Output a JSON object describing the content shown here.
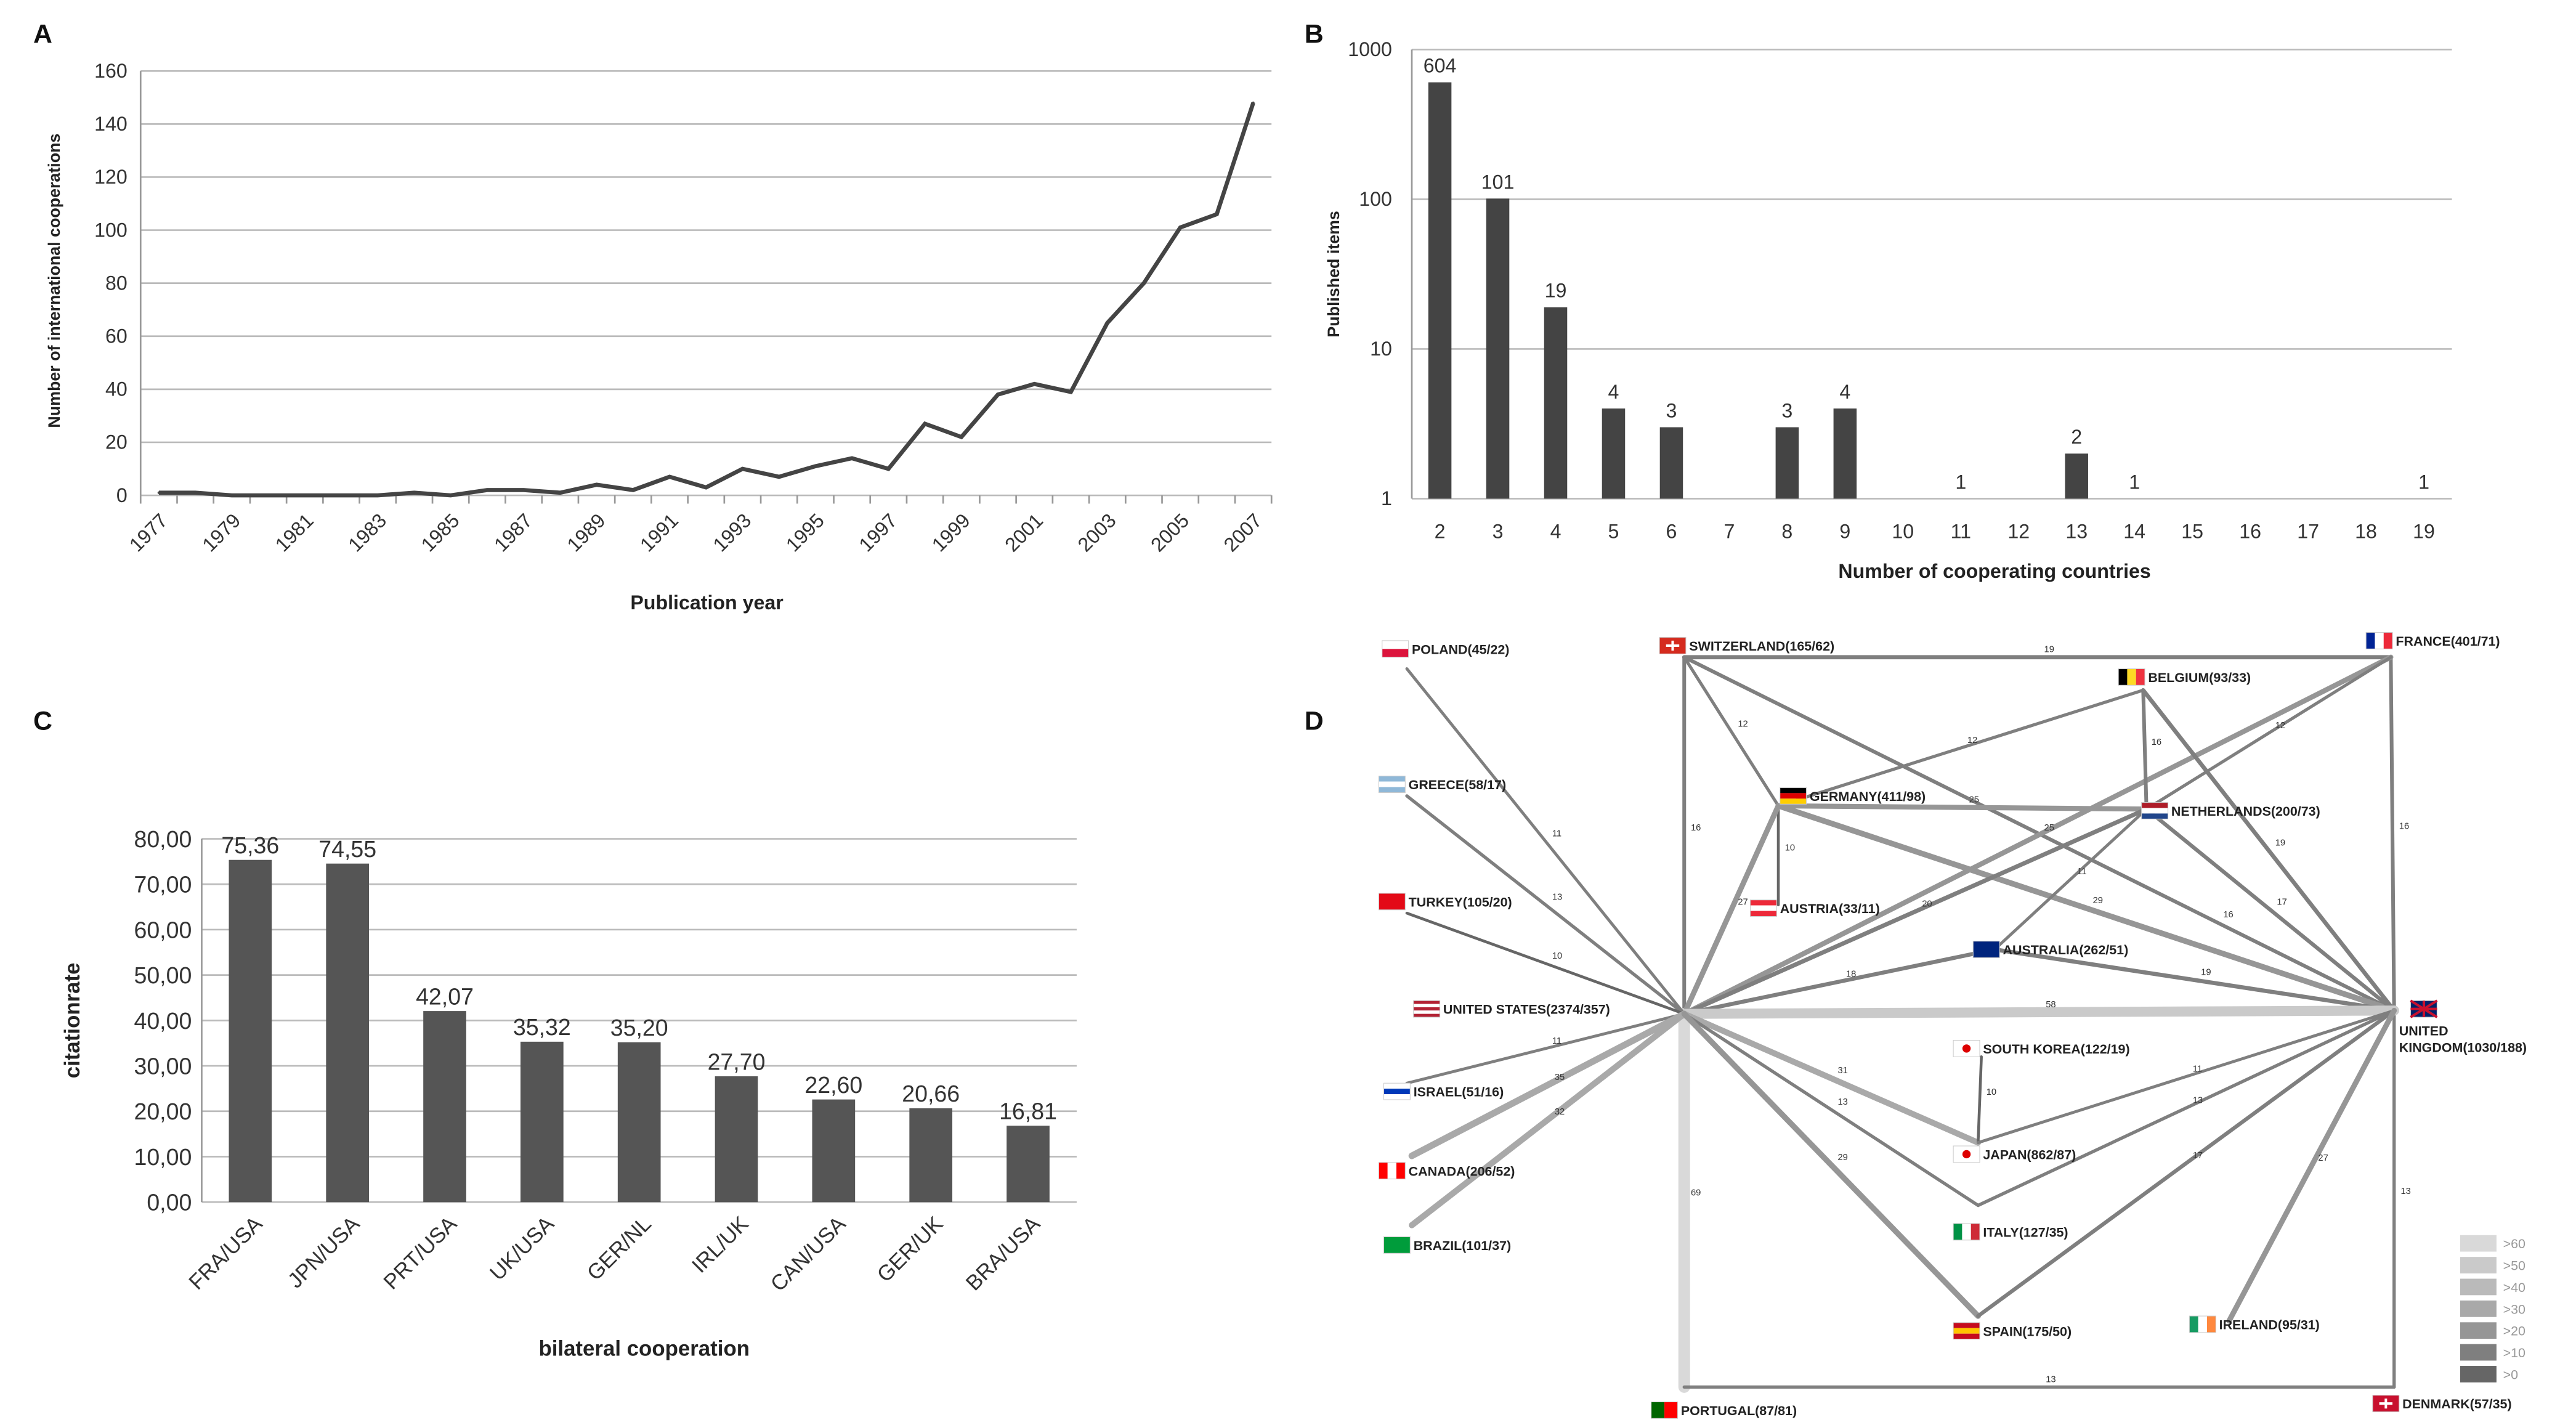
{
  "chart_data": [
    {
      "panel": "A",
      "type": "line",
      "xlabel": "Publication year",
      "ylabel": "Number of international cooperations",
      "ylim": [
        0,
        160
      ],
      "yticks": [
        0,
        20,
        40,
        60,
        80,
        100,
        120,
        140,
        160
      ],
      "xticks": [
        "1977",
        "1979",
        "1981",
        "1983",
        "1985",
        "1987",
        "1989",
        "1991",
        "1993",
        "1995",
        "1997",
        "1999",
        "2001",
        "2003",
        "2005",
        "2007"
      ],
      "x": [
        1977,
        1978,
        1979,
        1980,
        1981,
        1982,
        1983,
        1984,
        1985,
        1986,
        1987,
        1988,
        1989,
        1990,
        1991,
        1992,
        1993,
        1994,
        1995,
        1996,
        1997,
        1998,
        1999,
        2000,
        2001,
        2002,
        2003,
        2004,
        2005,
        2006,
        2007
      ],
      "values": [
        1,
        1,
        0,
        0,
        0,
        0,
        0,
        1,
        0,
        2,
        2,
        1,
        4,
        2,
        7,
        3,
        10,
        7,
        11,
        14,
        10,
        27,
        22,
        38,
        42,
        39,
        65,
        80,
        101,
        106,
        148
      ],
      "grid": true,
      "color": "#444444"
    },
    {
      "panel": "B",
      "type": "bar",
      "scale": "log",
      "xlabel": "Number of cooperating countries",
      "ylabel": "Published items",
      "ylim": [
        1,
        1000
      ],
      "yticks": [
        "1",
        "10",
        "100",
        "1000"
      ],
      "categories": [
        "2",
        "3",
        "4",
        "5",
        "6",
        "7",
        "8",
        "9",
        "10",
        "11",
        "12",
        "13",
        "14",
        "15",
        "16",
        "17",
        "18",
        "19"
      ],
      "values": [
        604,
        101,
        19,
        4,
        3,
        null,
        3,
        4,
        null,
        1,
        null,
        2,
        1,
        null,
        null,
        null,
        null,
        1
      ],
      "grid": true,
      "color": "#444444"
    },
    {
      "panel": "C",
      "type": "bar",
      "xlabel": "bilateral cooperation",
      "ylabel": "citationrate",
      "ylim": [
        0,
        80
      ],
      "yticks": [
        "0,00",
        "10,00",
        "20,00",
        "30,00",
        "40,00",
        "50,00",
        "60,00",
        "70,00",
        "80,00"
      ],
      "categories": [
        "FRA/USA",
        "JPN/USA",
        "PRT/USA",
        "UK/USA",
        "GER/NL",
        "IRL/UK",
        "CAN/USA",
        "GER/UK",
        "BRA/USA"
      ],
      "values": [
        75.36,
        74.55,
        42.07,
        35.32,
        35.2,
        27.7,
        22.6,
        20.66,
        16.81
      ],
      "value_labels": [
        "75,36",
        "74,55",
        "42,07",
        "35,32",
        "35,20",
        "27,70",
        "22,60",
        "20,66",
        "16,81"
      ],
      "grid": true,
      "color": "#555555"
    },
    {
      "panel": "D",
      "type": "network",
      "nodes": [
        {
          "id": "poland",
          "label": "POLAND(45/22)",
          "flag": [
            "#ffffff",
            "#dc143c"
          ],
          "dir": "h"
        },
        {
          "id": "switzerland",
          "label": "SWITZERLAND(165/62)",
          "flag": [
            "#d52b1e"
          ],
          "dir": "h"
        },
        {
          "id": "france",
          "label": "FRANCE(401/71)",
          "flag": [
            "#002395",
            "#ffffff",
            "#ed2939"
          ],
          "dir": "v"
        },
        {
          "id": "belgium",
          "label": "BELGIUM(93/33)",
          "flag": [
            "#000000",
            "#fdda24",
            "#ef3340"
          ],
          "dir": "v"
        },
        {
          "id": "greece",
          "label": "GREECE(58/17)",
          "flag": [
            "#8fb8d8",
            "#ffffff",
            "#8fb8d8"
          ],
          "dir": "h"
        },
        {
          "id": "germany",
          "label": "GERMANY(411/98)",
          "flag": [
            "#000000",
            "#dd0000",
            "#ffce00"
          ],
          "dir": "h"
        },
        {
          "id": "netherlands",
          "label": "NETHERLANDS(200/73)",
          "flag": [
            "#ae1c28",
            "#ffffff",
            "#21468b"
          ],
          "dir": "h"
        },
        {
          "id": "turkey",
          "label": "TURKEY(105/20)",
          "flag": [
            "#e30a17"
          ],
          "dir": "h"
        },
        {
          "id": "austria",
          "label": "AUSTRIA(33/11)",
          "flag": [
            "#ed2939",
            "#ffffff",
            "#ed2939"
          ],
          "dir": "h"
        },
        {
          "id": "australia",
          "label": "AUSTRALIA(262/51)",
          "flag": [
            "#00247d"
          ],
          "dir": "h"
        },
        {
          "id": "usa",
          "label": "UNITED STATES(2374/357)",
          "flag": [
            "#b22234",
            "#ffffff",
            "#b22234",
            "#ffffff",
            "#b22234"
          ],
          "dir": "h"
        },
        {
          "id": "uk",
          "label": "UNITED",
          "label2": "KINGDOM(1030/188)",
          "flag": [
            "#012169"
          ],
          "dir": "h"
        },
        {
          "id": "southkorea",
          "label": "SOUTH KOREA(122/19)",
          "flag": [
            "#ffffff"
          ],
          "dir": "h"
        },
        {
          "id": "israel",
          "label": "ISRAEL(51/16)",
          "flag": [
            "#ffffff",
            "#0038b8",
            "#ffffff"
          ],
          "dir": "h"
        },
        {
          "id": "japan",
          "label": "JAPAN(862/87)",
          "flag": [
            "#ffffff"
          ],
          "dir": "h"
        },
        {
          "id": "canada",
          "label": "CANADA(206/52)",
          "flag": [
            "#ff0000",
            "#ffffff",
            "#ff0000"
          ],
          "dir": "v"
        },
        {
          "id": "italy",
          "label": "ITALY(127/35)",
          "flag": [
            "#009246",
            "#ffffff",
            "#ce2b37"
          ],
          "dir": "v"
        },
        {
          "id": "brazil",
          "label": "BRAZIL(101/37)",
          "flag": [
            "#009c3b"
          ],
          "dir": "h"
        },
        {
          "id": "ireland",
          "label": "IRELAND(95/31)",
          "flag": [
            "#169b62",
            "#ffffff",
            "#ff883e"
          ],
          "dir": "v"
        },
        {
          "id": "spain",
          "label": "SPAIN(175/50)",
          "flag": [
            "#c60b1e",
            "#ffc400",
            "#c60b1e"
          ],
          "dir": "h"
        },
        {
          "id": "portugal",
          "label": "PORTUGAL(87/81)",
          "flag": [
            "#006600",
            "#ff0000"
          ],
          "dir": "v"
        },
        {
          "id": "denmark",
          "label": "DENMARK(57/35)",
          "flag": [
            "#c8102e"
          ],
          "dir": "h"
        }
      ],
      "edges": [
        [
          "switzerland",
          "france",
          19
        ],
        [
          "switzerland",
          "usa",
          16
        ],
        [
          "usa",
          "portugal",
          69
        ],
        [
          "france",
          "uk",
          16
        ],
        [
          "uk",
          "denmark",
          13
        ],
        [
          "portugal",
          "denmark",
          13
        ],
        [
          "switzerland",
          "germany",
          12
        ],
        [
          "switzerland",
          "uk",
          16
        ],
        [
          "germany",
          "belgium",
          12
        ],
        [
          "usa",
          "france",
          25
        ],
        [
          "netherlands",
          "france",
          12
        ],
        [
          "belgium",
          "netherlands",
          16
        ],
        [
          "belgium",
          "uk",
          19
        ],
        [
          "germany",
          "netherlands",
          25
        ],
        [
          "germany",
          "austria",
          10
        ],
        [
          "germany",
          "usa",
          27
        ],
        [
          "germany",
          "uk",
          29
        ],
        [
          "netherlands",
          "uk",
          17
        ],
        [
          "netherlands",
          "usa",
          20
        ],
        [
          "netherlands",
          "australia",
          11
        ],
        [
          "australia",
          "usa",
          18
        ],
        [
          "australia",
          "uk",
          19
        ],
        [
          "usa",
          "uk",
          58
        ],
        [
          "poland",
          "usa",
          11
        ],
        [
          "greece",
          "usa",
          13
        ],
        [
          "turkey",
          "usa",
          10
        ],
        [
          "israel",
          "usa",
          11
        ],
        [
          "canada",
          "usa",
          35
        ],
        [
          "brazil",
          "usa",
          32
        ],
        [
          "usa",
          "japan",
          31
        ],
        [
          "usa",
          "italy",
          13
        ],
        [
          "usa",
          "spain",
          29
        ],
        [
          "southkorea",
          "japan",
          10
        ],
        [
          "japan",
          "uk",
          11
        ],
        [
          "italy",
          "uk",
          13
        ],
        [
          "spain",
          "uk",
          17
        ],
        [
          "ireland",
          "uk",
          27
        ]
      ],
      "legend": [
        {
          "label": ">60",
          "color": "#d9d9d9"
        },
        {
          "label": ">50",
          "color": "#cacaca"
        },
        {
          "label": ">40",
          "color": "#bababa"
        },
        {
          "label": ">30",
          "color": "#a9a9a9"
        },
        {
          "label": ">20",
          "color": "#969696"
        },
        {
          "label": ">10",
          "color": "#7f7f7f"
        },
        {
          "label": ">0",
          "color": "#666666"
        }
      ]
    }
  ],
  "panels": {
    "a": "A",
    "b": "B",
    "c": "C",
    "d": "D"
  }
}
